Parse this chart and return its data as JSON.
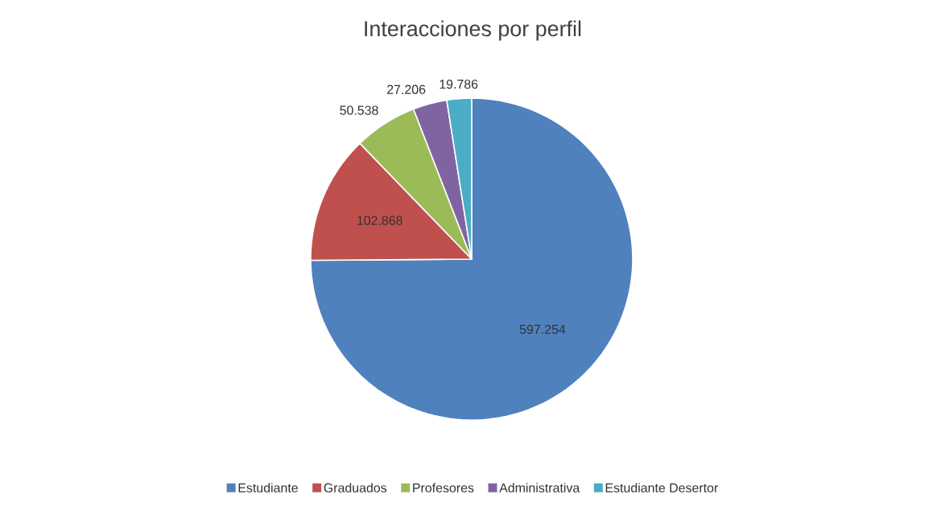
{
  "chart_data": {
    "type": "pie",
    "title": "Interacciones por perfil",
    "categories": [
      "Estudiante",
      "Graduados",
      "Profesores",
      "Administrativa",
      "Estudiante Desertor"
    ],
    "values": [
      597254,
      102868,
      50538,
      27206,
      19786
    ],
    "value_labels": [
      "597.254",
      "102.868",
      "50.538",
      "27.206",
      "19.786"
    ],
    "colors": [
      "#4f81bd",
      "#c0504d",
      "#9bbb59",
      "#8064a2",
      "#4bacc6"
    ],
    "legend": "bottom"
  }
}
